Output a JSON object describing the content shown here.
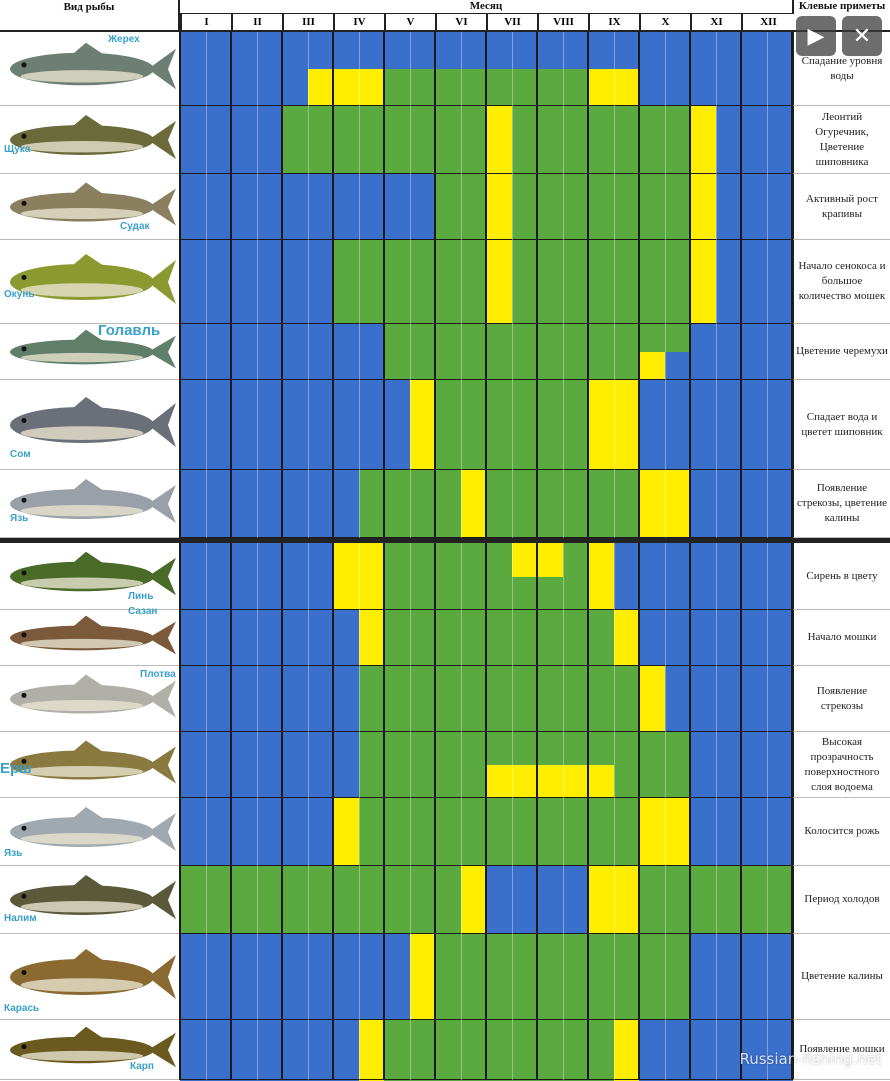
{
  "header": {
    "species_label": "Вид рыбы",
    "month_label": "Месяц",
    "signs_label": "Клевые приметы",
    "months": [
      "I",
      "II",
      "III",
      "IV",
      "V",
      "VI",
      "VII",
      "VIII",
      "IX",
      "X",
      "XI",
      "XII"
    ]
  },
  "colors": {
    "B": "#3b6fcc",
    "G": "#5aaa40",
    "Y": "#ffee00"
  },
  "legend": {
    "B": "blue",
    "G": "green",
    "Y": "yellow"
  },
  "viewer": {
    "play_icon": "▶",
    "close_icon": "✕"
  },
  "watermark": "Russian-fishing.net",
  "fish": [
    {
      "name": "Жерех",
      "sign": "Спадание уровня воды",
      "segments": [
        {
          "s": "BBBBBBBBBBBBBBBBBBBBBBBB"
        },
        {
          "s": "BBBBBYYYGGGGGGGGYYBBBBBB"
        }
      ]
    },
    {
      "name": "Щука",
      "sign": "Леонтий Огуречник, Цветение шиповника",
      "segments": [
        {
          "s": "BBBBGGGGGGGGYGGGGGGGYBBB"
        }
      ]
    },
    {
      "name": "Судак",
      "sign": "Активный рост крапивы",
      "segments": [
        {
          "s": "BBBBBBBBBBGGYGGGGGGGYBBB"
        }
      ]
    },
    {
      "name": "Окунь",
      "sign": "Начало сенокоса и большое количество мошек",
      "segments": [
        {
          "s": "BBBBBBGGGGGGYGGGGGGGYBBB"
        }
      ]
    },
    {
      "name": "Голавль",
      "sign": "Цветение черемухи",
      "segments": [
        {
          "s": "BBBBBBBBGGGGGGGGGGGGBBBB"
        },
        {
          "s": "BBBBBBBBGGGGGGGGGGYBBBBB"
        }
      ]
    },
    {
      "name": "Сом",
      "sign": "Спадает вода и цветет шиповник",
      "segments": [
        {
          "s": "BBBBBBBBBYGGGGGGYYBBBBBB"
        }
      ]
    },
    {
      "name": "Язь",
      "sign": "Появление стрекозы, цветение калины",
      "segments": [
        {
          "s": "BBBBBBBGGGGYGGGGGGYYBBBB"
        }
      ]
    },
    {
      "name": "Линь",
      "sign": "Сирень в цвету",
      "segments": [
        {
          "s": "BBBBBBYYGGGGGYYGYBBBBBBB"
        },
        {
          "s": "BBBBBBYYGGGGGGGGYBBBBBBB"
        }
      ]
    },
    {
      "name": "Сазан",
      "sign": "Начало мошки",
      "segments": [
        {
          "s": "BBBBBBBYGGGGGGGGGYBBBBBB"
        }
      ]
    },
    {
      "name": "Плотва",
      "sign": "Появление стрекозы",
      "segments": [
        {
          "s": "BBBBBBBGGGGGGGGGGGYBBBBB"
        }
      ]
    },
    {
      "name": "Ерш",
      "sign": "Высокая прозрачность поверхностного слоя водоема",
      "segments": [
        {
          "s": "BBBBBBBGGGGGGGGGGGGGBBBB"
        },
        {
          "s": "BBBBBBBGGGGGYYYYYGGGBBBB"
        }
      ]
    },
    {
      "name": "Язь",
      "sign": "Колосится рожь",
      "segments": [
        {
          "s": "BBBBBBYGGGGGGGGGGGYYBBBB"
        }
      ]
    },
    {
      "name": "Налим",
      "sign": "Период холодов",
      "segments": [
        {
          "s": "GGGGGGGGGGGYBBBBYYGGGGGG"
        }
      ]
    },
    {
      "name": "Карась",
      "sign": "Цветение калины",
      "segments": [
        {
          "s": "BBBBBBBBBYGGGGGGGGGGBBBB"
        }
      ]
    },
    {
      "name": "Карп",
      "sign": "Появление мошки",
      "segments": [
        {
          "s": "BBBBBBBYGGGGGGGGGYBBBBBB"
        }
      ]
    }
  ]
}
